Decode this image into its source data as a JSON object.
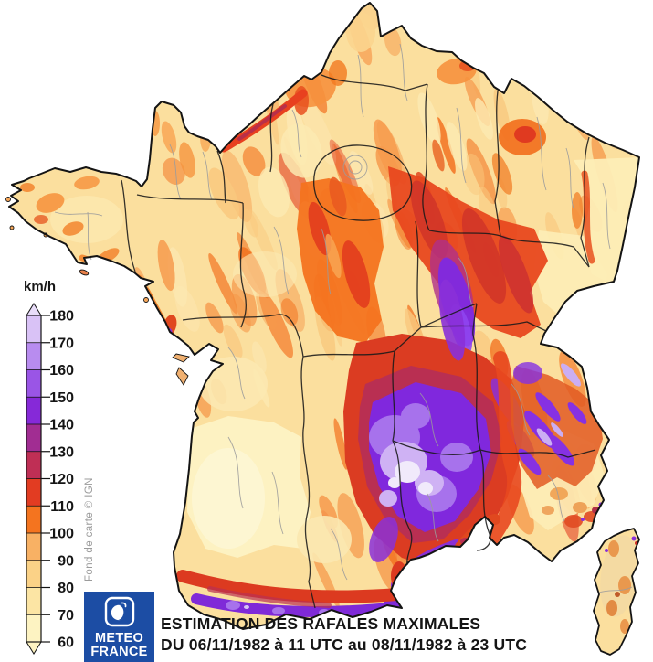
{
  "title": {
    "line1": "ESTIMATION DES RAFALES MAXIMALES",
    "line2": "DU 06/11/1982 à 11 UTC au 08/11/1982 à 23 UTC"
  },
  "logo": {
    "name_line1": "METEO",
    "name_line2": "FRANCE",
    "background": "#1c4da4"
  },
  "attribution": "Fond de carte © IGN",
  "legend": {
    "unit": "km/h",
    "tick_labels": [
      180,
      170,
      160,
      150,
      140,
      130,
      120,
      110,
      100,
      90,
      80,
      70,
      60
    ],
    "min": 60,
    "max": 180,
    "step": 10,
    "segments_low_to_high": [
      {
        "from": 60,
        "to": 70,
        "color": "#fdf3c2"
      },
      {
        "from": 70,
        "to": 80,
        "color": "#fce5a4"
      },
      {
        "from": 80,
        "to": 90,
        "color": "#fbd287"
      },
      {
        "from": 90,
        "to": 100,
        "color": "#f8b164"
      },
      {
        "from": 100,
        "to": 110,
        "color": "#f4741f"
      },
      {
        "from": 110,
        "to": 120,
        "color": "#e23c22"
      },
      {
        "from": 120,
        "to": 130,
        "color": "#bf2f55"
      },
      {
        "from": 130,
        "to": 140,
        "color": "#a12d92"
      },
      {
        "from": 140,
        "to": 150,
        "color": "#8629d8"
      },
      {
        "from": 150,
        "to": 160,
        "color": "#9a55e6"
      },
      {
        "from": 160,
        "to": 170,
        "color": "#b88cef"
      },
      {
        "from": 170,
        "to": 180,
        "color": "#d9c2f6"
      }
    ],
    "arrow_top_color": "#e8dcf9",
    "arrow_bottom_color": "#fdf3c2"
  },
  "map": {
    "sea_color": "#ffffff",
    "region_border_color": "#1a1a1a",
    "department_border_color": "#9c9c9c"
  }
}
